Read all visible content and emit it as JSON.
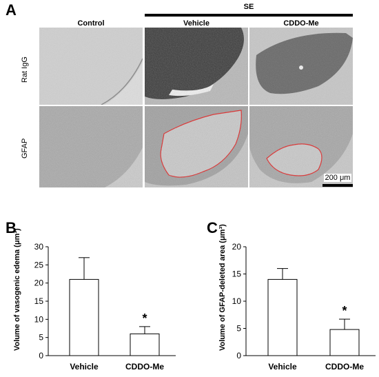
{
  "panel_a": {
    "letter": "A",
    "group_label": "SE",
    "columns": [
      "Control",
      "Vehicle",
      "CDDO-Me"
    ],
    "rows": [
      "Rat IgG",
      "GFAP"
    ],
    "scale_label": "200 μm"
  },
  "chart_data": [
    {
      "type": "bar",
      "panel": "B",
      "categories": [
        "Vehicle",
        "CDDO-Me"
      ],
      "values": [
        21,
        6
      ],
      "errors": [
        6,
        2
      ],
      "significance": [
        "",
        "*"
      ],
      "ylabel": "Volume of vasogenic edema (μm³)",
      "ylim": [
        0,
        30
      ],
      "yticks": [
        0,
        5,
        10,
        15,
        20,
        25,
        30
      ],
      "bar_color": "#ffffff",
      "grid": false
    },
    {
      "type": "bar",
      "panel": "C",
      "categories": [
        "Vehicle",
        "CDDO-Me"
      ],
      "values": [
        14,
        4.8
      ],
      "errors": [
        2,
        1.9
      ],
      "significance": [
        "",
        "*"
      ],
      "ylabel": "Volume of GFAP-deleted area (μm³)",
      "ylim": [
        0,
        20
      ],
      "yticks": [
        0,
        5,
        10,
        15,
        20
      ],
      "bar_color": "#ffffff",
      "grid": false
    }
  ],
  "outline_color": "#e02020"
}
